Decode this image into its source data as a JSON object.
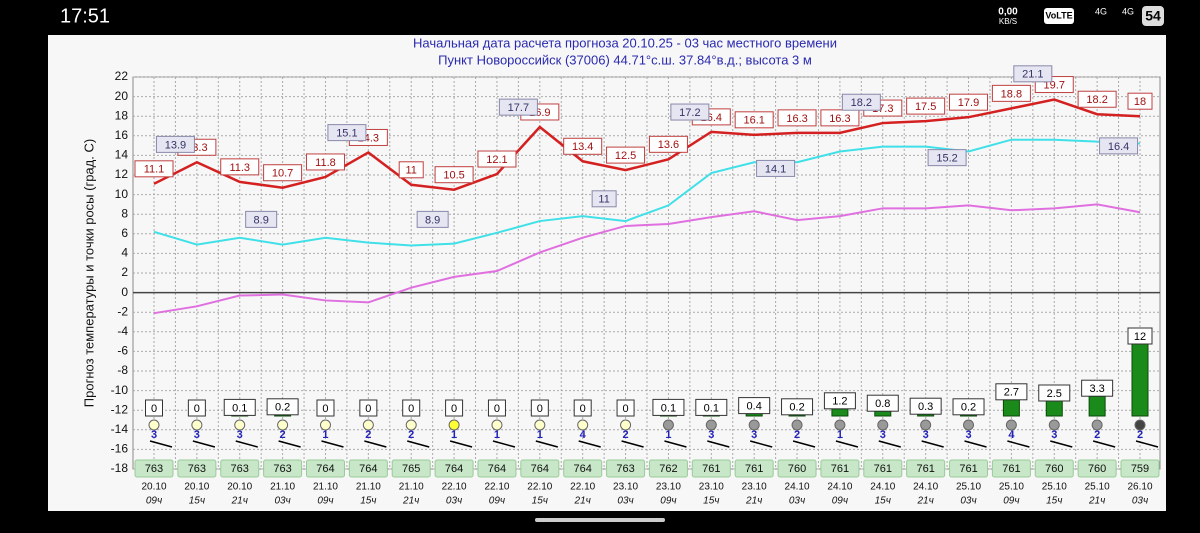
{
  "status": {
    "time": "17:51",
    "speed": "0,00",
    "speed_unit": "KB/S",
    "volte": "VoLTE",
    "net1": "4G",
    "net2": "4G",
    "battery": "54"
  },
  "chart_data": {
    "type": "line",
    "title": "Начальная дата расчета прогноза 20.10.25 - 03 час местного времени",
    "subtitle": "Пункт  Новороссийск (37006)   44.71°с.ш.  37.84°в.д.; высота 3 м",
    "y_label": "Прогноз температуры и точки росы (град. С)",
    "ylim": [
      -18,
      22
    ],
    "yticks": [
      -18,
      -16,
      -14,
      -12,
      -10,
      -8,
      -6,
      -4,
      -2,
      0,
      2,
      4,
      6,
      8,
      10,
      12,
      14,
      16,
      18,
      20,
      22
    ],
    "grid": true,
    "categories": [
      [
        "20.10",
        "09ч"
      ],
      [
        "20.10",
        "15ч"
      ],
      [
        "20.10",
        "21ч"
      ],
      [
        "21.10",
        "03ч"
      ],
      [
        "21.10",
        "09ч"
      ],
      [
        "21.10",
        "15ч"
      ],
      [
        "21.10",
        "21ч"
      ],
      [
        "22.10",
        "03ч"
      ],
      [
        "22.10",
        "09ч"
      ],
      [
        "22.10",
        "15ч"
      ],
      [
        "22.10",
        "21ч"
      ],
      [
        "23.10",
        "03ч"
      ],
      [
        "23.10",
        "09ч"
      ],
      [
        "23.10",
        "15ч"
      ],
      [
        "23.10",
        "21ч"
      ],
      [
        "24.10",
        "03ч"
      ],
      [
        "24.10",
        "09ч"
      ],
      [
        "24.10",
        "15ч"
      ],
      [
        "24.10",
        "21ч"
      ],
      [
        "25.10",
        "03ч"
      ],
      [
        "25.10",
        "09ч"
      ],
      [
        "25.10",
        "15ч"
      ],
      [
        "25.10",
        "21ч"
      ],
      [
        "26.10",
        "03ч"
      ]
    ],
    "series": [
      {
        "color": "#d42020",
        "values": [
          11.1,
          13.3,
          11.3,
          10.7,
          11.8,
          14.3,
          11,
          10.5,
          12.1,
          16.9,
          13.4,
          12.5,
          13.6,
          16.4,
          16.1,
          16.3,
          16.3,
          17.3,
          17.5,
          17.9,
          18.8,
          19.7,
          18.2,
          18
        ]
      },
      {
        "color": "#40e0e8",
        "values": [
          6.2,
          4.9,
          5.6,
          4.9,
          5.6,
          5.1,
          4.8,
          5.0,
          6.1,
          7.3,
          7.8,
          7.3,
          8.9,
          12.2,
          13.3,
          13.3,
          14.4,
          14.9,
          14.9,
          14.4,
          15.6,
          15.6,
          15.4,
          15.2
        ]
      },
      {
        "color": "#e070e0",
        "values": [
          -2.1,
          -1.4,
          -0.3,
          -0.2,
          -0.8,
          -1.0,
          0.5,
          1.6,
          2.2,
          4.1,
          5.6,
          6.8,
          7.0,
          7.7,
          8.3,
          7.4,
          7.8,
          8.6,
          8.6,
          8.9,
          8.4,
          8.6,
          9.0,
          8.2
        ]
      }
    ],
    "intermediate_values": [
      13.9,
      8.9,
      15.1,
      8.9,
      17.7,
      11,
      17.2,
      14.1,
      18.2,
      15.2,
      21.1,
      16.4
    ],
    "precipitation": {
      "color": "#1a8a1a",
      "values": [
        0,
        0,
        0.1,
        0.2,
        0,
        0,
        0,
        0,
        0,
        0,
        0,
        0,
        0.1,
        0.1,
        0.4,
        0.2,
        1.2,
        0.8,
        0.3,
        0.2,
        2.7,
        2.5,
        3.3,
        12
      ]
    },
    "cloud_colors": [
      "#ffffcc",
      "#ffffcc",
      "#ffffcc",
      "#ffffcc",
      "#ffffcc",
      "#ffffcc",
      "#ffffcc",
      "#ffff33",
      "#ffffcc",
      "#ffffcc",
      "#ffffcc",
      "#ffffcc",
      "#999999",
      "#999999",
      "#999999",
      "#999999",
      "#999999",
      "#999999",
      "#999999",
      "#999999",
      "#999999",
      "#999999",
      "#999999",
      "#444444"
    ],
    "wind": [
      3,
      3,
      3,
      2,
      1,
      2,
      2,
      1,
      1,
      1,
      4,
      2,
      1,
      3,
      3,
      2,
      1,
      3,
      3,
      3,
      4,
      3,
      2,
      2
    ],
    "pressure": [
      763,
      763,
      763,
      763,
      764,
      764,
      765,
      764,
      764,
      764,
      764,
      763,
      762,
      761,
      761,
      760,
      761,
      761,
      761,
      761,
      761,
      760,
      760,
      759
    ]
  }
}
